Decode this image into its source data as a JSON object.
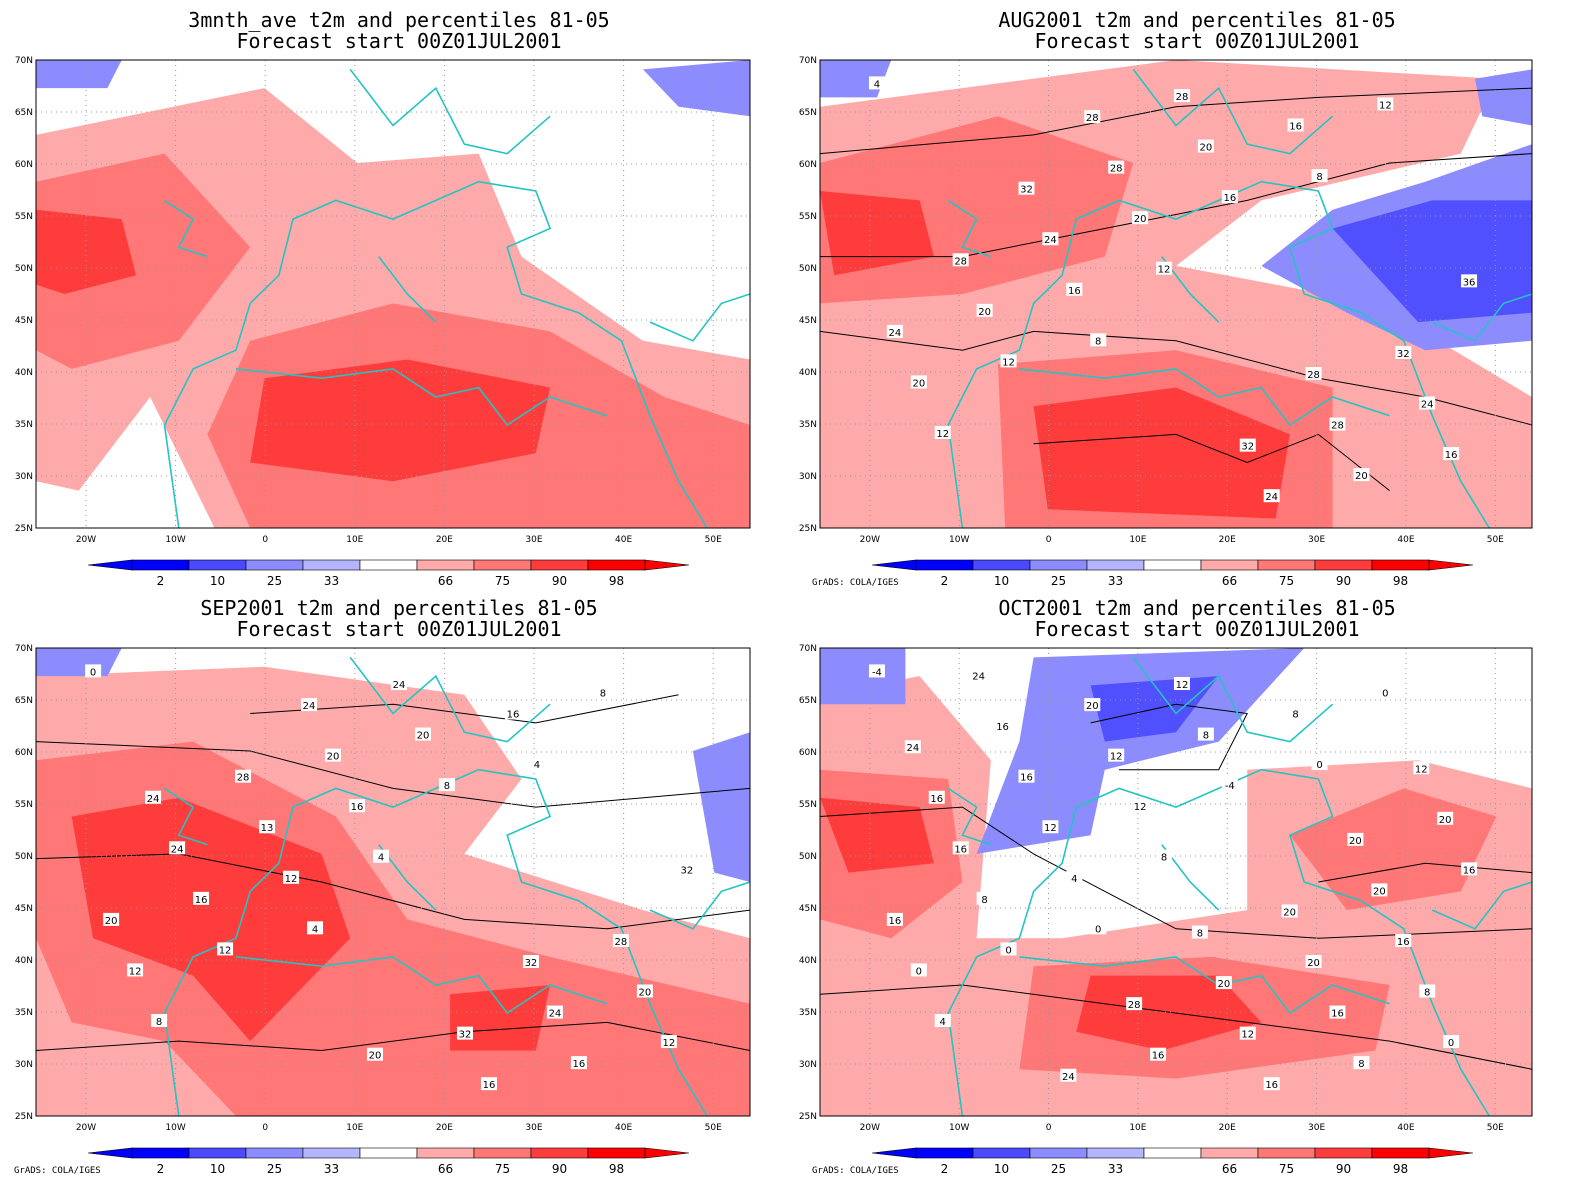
{
  "panels": [
    {
      "title_line1": "3mnth_ave t2m and percentiles 81-05",
      "title_line2": "Forecast start 00Z01JUL2001",
      "credit": "",
      "contour_labels": []
    },
    {
      "title_line1": "AUG2001 t2m and percentiles 81-05",
      "title_line2": "Forecast start 00Z01JUL2001",
      "credit": "GrADS: COLA/IGES",
      "contour_labels": [
        "4",
        "8",
        "8",
        "12",
        "12",
        "12",
        "12",
        "16",
        "16",
        "16",
        "16",
        "20",
        "20",
        "20",
        "20",
        "20",
        "24",
        "24",
        "24",
        "24",
        "28",
        "28",
        "28",
        "28",
        "32",
        "32",
        "32",
        "36",
        "28",
        "28"
      ]
    },
    {
      "title_line1": "SEP2001 t2m and percentiles 81-05",
      "title_line2": "Forecast start 00Z01JUL2001",
      "credit": "GrADS: COLA/IGES",
      "contour_labels": [
        "0",
        "4",
        "4",
        "8",
        "4",
        "8",
        "12",
        "8",
        "12",
        "12",
        "16",
        "12",
        "16",
        "16",
        "16",
        "20",
        "20",
        "13",
        "16",
        "20",
        "20",
        "24",
        "24",
        "24",
        "28",
        "28",
        "32",
        "32",
        "24",
        "32",
        "24",
        "20"
      ]
    },
    {
      "title_line1": "OCT2001 t2m and percentiles 81-05",
      "title_line2": "Forecast start 00Z01JUL2001",
      "credit": "GrADS: COLA/IGES",
      "contour_labels": [
        "-4",
        "0",
        "0",
        "4",
        "8",
        "0",
        "0",
        "-4",
        "0",
        "4",
        "8",
        "0",
        "12",
        "8",
        "8",
        "8",
        "8",
        "12",
        "16",
        "16",
        "12",
        "16",
        "16",
        "12",
        "16",
        "16",
        "12",
        "16",
        "20",
        "20",
        "16",
        "16",
        "20",
        "16",
        "20",
        "20",
        "24",
        "20",
        "24",
        "28",
        "20",
        "24",
        "8",
        "12"
      ]
    }
  ],
  "axes": {
    "lon_ticks": [
      "20W",
      "10W",
      "0",
      "10E",
      "20E",
      "30E",
      "40E",
      "50E"
    ],
    "lat_ticks": [
      "70N",
      "65N",
      "60N",
      "55N",
      "50N",
      "45N",
      "40N",
      "35N",
      "30N",
      "25N"
    ]
  },
  "colorbar": {
    "labels": [
      "2",
      "10",
      "25",
      "33",
      "66",
      "75",
      "90",
      "98"
    ],
    "colors": [
      "#0000ff",
      "#4a4aff",
      "#8c8cff",
      "#b4b4ff",
      "#ffffff",
      "#ffaaaa",
      "#ff7777",
      "#ff3c3c",
      "#ff0000"
    ]
  },
  "colors": {
    "coast": "#22c4c4",
    "warm_1": "#ffaaaa",
    "warm_2": "#ff7777",
    "warm_3": "#ff3c3c",
    "warm_4": "#ff0000",
    "cool_1": "#b4b4ff",
    "cool_2": "#8c8cff",
    "cool_3": "#5050ff"
  }
}
